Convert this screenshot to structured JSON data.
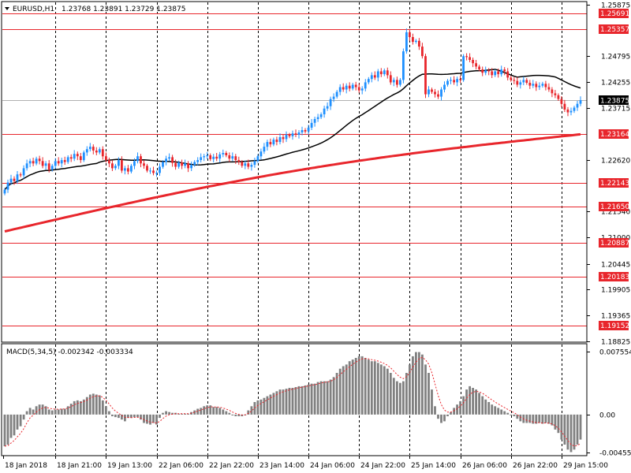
{
  "header": {
    "symbol_timeframe": "EURUSD,H1",
    "ohlc": "1.23768 1.23891 1.23729 1.23875"
  },
  "indicator": {
    "label": "MACD(5,34,5) -0.002342 -0.003334"
  },
  "colors": {
    "background": "#ffffff",
    "grid": "#000000",
    "bull": "#1e90ff",
    "bear": "#e8262c",
    "wick": "#333333",
    "ma_fast": "#000000",
    "ma_slow": "#e8262c",
    "level_line": "#e8262c",
    "level_label_bg": "#e8262c",
    "level_label_text": "#ffffff",
    "current_price_bg": "#000000",
    "current_price_line": "#b0b0b0",
    "macd_hist": "#808080",
    "macd_signal": "#e8262c",
    "frame": "#000000"
  },
  "chart_data": [
    {
      "type": "candlestick",
      "instrument": "EURUSD",
      "timeframe": "H1",
      "ylim": [
        1.1882,
        1.2591
      ],
      "ytick_labels": [
        "1.25875",
        "1.24795",
        "1.24255",
        "1.23715",
        "1.22620",
        "1.21540",
        "1.21000",
        "1.20445",
        "1.19905",
        "1.19365",
        "1.18825"
      ],
      "ytick_values": [
        1.25875,
        1.24795,
        1.24255,
        1.23715,
        1.2262,
        1.2154,
        1.21,
        1.20445,
        1.19905,
        1.19365,
        1.18825
      ],
      "current_price": "1.23875",
      "current_price_value": 1.23875,
      "price_levels": [
        "1.25691",
        "1.25357",
        "1.23164",
        "1.22143",
        "1.21650",
        "1.20887",
        "1.20183",
        "1.19152"
      ],
      "price_level_values": [
        1.25691,
        1.25357,
        1.23164,
        1.22143,
        1.2165,
        1.20887,
        1.20183,
        1.19152
      ],
      "x_labels": [
        "18 Jan 2018",
        "18 Jan 21:00",
        "19 Jan 13:00",
        "22 Jan 06:00",
        "22 Jan 22:00",
        "23 Jan 14:00",
        "24 Jan 06:00",
        "24 Jan 22:00",
        "25 Jan 14:00",
        "26 Jan 06:00",
        "26 Jan 22:00",
        "29 Jan 15:00"
      ],
      "x_label_bars": [
        0,
        16,
        32,
        48,
        64,
        80,
        96,
        112,
        128,
        144,
        160,
        176
      ],
      "vgrid_bars": [
        16,
        32,
        48,
        64,
        80,
        96,
        112,
        128,
        144,
        160,
        176
      ],
      "n_bars": 183,
      "close_series": [
        1.22,
        1.2215,
        1.2223,
        1.2218,
        1.2232,
        1.223,
        1.2245,
        1.2255,
        1.226,
        1.2255,
        1.2265,
        1.226,
        1.225,
        1.2255,
        1.2242,
        1.225,
        1.226,
        1.2255,
        1.2262,
        1.2258,
        1.2268,
        1.2265,
        1.2275,
        1.227,
        1.2262,
        1.2278,
        1.2285,
        1.229,
        1.2282,
        1.2278,
        1.2285,
        1.227,
        1.2262,
        1.2255,
        1.2245,
        1.225,
        1.2262,
        1.224,
        1.2245,
        1.2238,
        1.225,
        1.226,
        1.227,
        1.2255,
        1.225,
        1.224,
        1.224,
        1.2235,
        1.2235,
        1.2248,
        1.2258,
        1.2265,
        1.2268,
        1.2256,
        1.2248,
        1.2257,
        1.225,
        1.2255,
        1.2245,
        1.2252,
        1.2258,
        1.2262,
        1.2268,
        1.227,
        1.2272,
        1.2264,
        1.2269,
        1.2265,
        1.2274,
        1.2277,
        1.2272,
        1.2265,
        1.227,
        1.2262,
        1.2258,
        1.225,
        1.2255,
        1.2248,
        1.2252,
        1.226,
        1.227,
        1.228,
        1.229,
        1.23,
        1.2295,
        1.2305,
        1.23,
        1.231,
        1.2306,
        1.2315,
        1.2312,
        1.2318,
        1.2315,
        1.232,
        1.2325,
        1.2322,
        1.233,
        1.234,
        1.2348,
        1.2352,
        1.2358,
        1.237,
        1.2375,
        1.239,
        1.2395,
        1.2405,
        1.2415,
        1.241,
        1.2418,
        1.2412,
        1.242,
        1.2415,
        1.2408,
        1.2412,
        1.2425,
        1.2432,
        1.244,
        1.2435,
        1.2448,
        1.2442,
        1.245,
        1.244,
        1.2425,
        1.243,
        1.242,
        1.243,
        1.249,
        1.253,
        1.252,
        1.251,
        1.2512,
        1.25,
        1.248,
        1.24,
        1.241,
        1.2405,
        1.24,
        1.2395,
        1.241,
        1.242,
        1.2428,
        1.243,
        1.2425,
        1.2432,
        1.243,
        1.248,
        1.2478,
        1.2472,
        1.2465,
        1.2458,
        1.2452,
        1.2445,
        1.245,
        1.2448,
        1.244,
        1.2448,
        1.2442,
        1.2452,
        1.2448,
        1.2435,
        1.243,
        1.2428,
        1.242,
        1.2425,
        1.243,
        1.2424,
        1.2418,
        1.2422,
        1.2415,
        1.2418,
        1.2422,
        1.2415,
        1.241,
        1.2402,
        1.2398,
        1.239,
        1.238,
        1.2368,
        1.2362,
        1.2365,
        1.2372,
        1.238,
        1.23875
      ],
      "macd_hist_extremes": {
        "max": 0.007554,
        "zero": 0.0,
        "min": -0.004555
      },
      "macd_tick_labels": [
        "0.007554",
        "0.00",
        "-0.004555"
      ],
      "macd_tick_values": [
        0.007554,
        0.0,
        -0.004555
      ],
      "macd_hist": [
        -0.0038,
        -0.0036,
        -0.0028,
        -0.0025,
        -0.0018,
        -0.0014,
        -0.0006,
        0.0004,
        0.0008,
        0.0006,
        0.001,
        0.0012,
        0.0012,
        0.001,
        0.0006,
        0.0005,
        0.0006,
        0.0006,
        0.0007,
        0.0007,
        0.001,
        0.0013,
        0.0016,
        0.0017,
        0.0016,
        0.0018,
        0.0021,
        0.0024,
        0.0025,
        0.0024,
        0.0023,
        0.0017,
        0.001,
        0.0004,
        -0.0002,
        -0.0003,
        -0.0004,
        -0.0006,
        -0.0008,
        -0.0004,
        -0.0004,
        -0.0003,
        -0.0003,
        -0.0006,
        -0.001,
        -0.0011,
        -0.0012,
        -0.001,
        -0.0012,
        -0.0004,
        0.0002,
        0.0004,
        0.0003,
        0.0002,
        0.0002,
        0.0001,
        0.0001,
        0.0001,
        0.0001,
        0.0003,
        0.0005,
        0.0007,
        0.0008,
        0.001,
        0.0011,
        0.0011,
        0.0009,
        0.0009,
        0.0008,
        0.0006,
        0.0004,
        0.0002,
        -0.0001,
        -0.0002,
        -0.0002,
        -0.0002,
        0.0,
        0.0005,
        0.001,
        0.0015,
        0.0017,
        0.0018,
        0.002,
        0.0022,
        0.0024,
        0.0026,
        0.0028,
        0.003,
        0.003,
        0.0031,
        0.0032,
        0.0032,
        0.0033,
        0.0034,
        0.0034,
        0.0035,
        0.0036,
        0.0037,
        0.0037,
        0.0039,
        0.004,
        0.004,
        0.004,
        0.0042,
        0.0045,
        0.005,
        0.0055,
        0.0058,
        0.006,
        0.0064,
        0.0066,
        0.0068,
        0.007,
        0.007,
        0.0068,
        0.0066,
        0.0064,
        0.0064,
        0.0062,
        0.006,
        0.0058,
        0.0055,
        0.005,
        0.0044,
        0.004,
        0.0038,
        0.004,
        0.005,
        0.006,
        0.007,
        0.0075,
        0.0075,
        0.0072,
        0.006,
        0.005,
        0.003,
        0.001,
        -0.0005,
        -0.001,
        -0.0008,
        -0.0002,
        0.0003,
        0.0008,
        0.0012,
        0.0016,
        0.0022,
        0.003,
        0.0034,
        0.0032,
        0.003,
        0.0026,
        0.0022,
        0.0018,
        0.0015,
        0.0012,
        0.001,
        0.0008,
        0.0006,
        0.0004,
        0.0002,
        0.0,
        -0.0002,
        -0.0005,
        -0.0008,
        -0.001,
        -0.001,
        -0.001,
        -0.0011,
        -0.0011,
        -0.001,
        -0.0011,
        -0.001,
        -0.0011,
        -0.0013,
        -0.0018,
        -0.0022,
        -0.003,
        -0.0036,
        -0.0042,
        -0.0045,
        -0.0042,
        -0.0036,
        -0.003
      ]
    }
  ]
}
